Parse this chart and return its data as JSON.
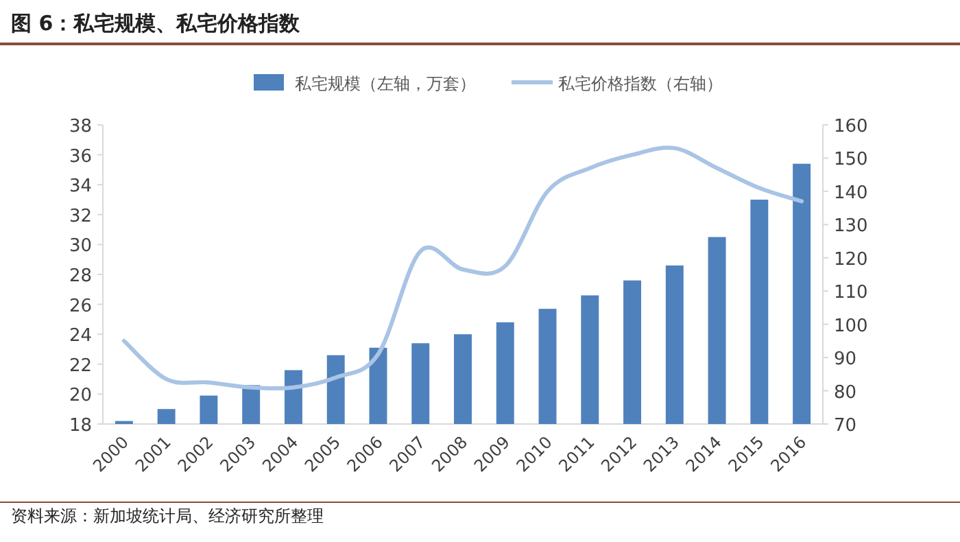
{
  "chart_data": {
    "type": "bar",
    "title": "图 6：私宅规模、私宅价格指数",
    "annotations": [
      "资料来源：新加坡统计局、经济研究所整理"
    ],
    "categories": [
      "2000",
      "2001",
      "2002",
      "2003",
      "2004",
      "2005",
      "2006",
      "2007",
      "2008",
      "2009",
      "2010",
      "2011",
      "2012",
      "2013",
      "2014",
      "2015",
      "2016"
    ],
    "series": [
      {
        "name": "私宅规模（左轴，万套）",
        "color": "#4f81bd",
        "values": [
          18.2,
          19.0,
          19.9,
          20.6,
          21.6,
          22.6,
          23.1,
          23.4,
          24.0,
          24.8,
          25.7,
          26.6,
          27.6,
          28.6,
          30.5,
          33.0,
          35.4
        ]
      },
      {
        "name": "私宅价格指数（右轴）",
        "type": "line",
        "axis": "y2",
        "color": "#a9c4e4",
        "values": [
          95,
          83.5,
          82.5,
          81,
          81,
          84,
          91,
          122,
          116.5,
          117.5,
          140,
          147,
          151,
          153,
          147,
          141,
          137
        ]
      }
    ],
    "ylim": [
      18,
      38
    ],
    "yticks": [
      18,
      20,
      22,
      24,
      26,
      28,
      30,
      32,
      34,
      36,
      38
    ],
    "y2lim": [
      70,
      160
    ],
    "y2ticks": [
      70,
      80,
      90,
      100,
      110,
      120,
      130,
      140,
      150,
      160
    ],
    "legend": "top",
    "grid": false
  }
}
